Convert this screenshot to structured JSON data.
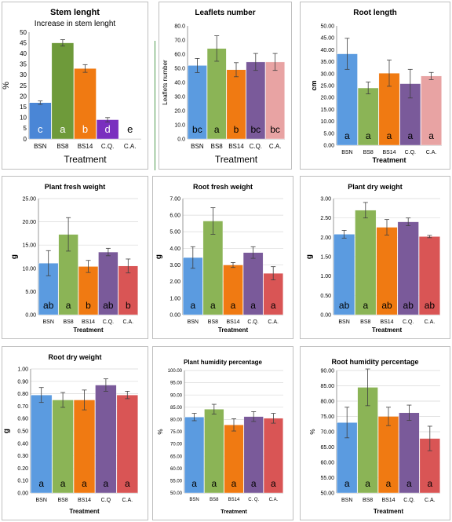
{
  "chart_data": [
    {
      "type": "bar",
      "title": "Stem lenght",
      "subtitle": "Increase in stem lenght",
      "xlabel": "Treatment",
      "ylabel": "%",
      "ylim": [
        0,
        50
      ],
      "yticks": [
        "0",
        "5",
        "10",
        "15",
        "20",
        "25",
        "30",
        "35",
        "40",
        "45",
        "50"
      ],
      "categories": [
        "BSN",
        "BS8",
        "BS14",
        "C.Q.",
        "C.A."
      ],
      "values": [
        17,
        45,
        33,
        9,
        0.3
      ],
      "errors": [
        0.8,
        1.5,
        1.8,
        1.0,
        0
      ],
      "letters": [
        "c",
        "a",
        "b",
        "d",
        "e"
      ],
      "colors": [
        "#4a86d6",
        "#6e9a3a",
        "#f07a12",
        "#7a2fbf",
        "#d9d9d9"
      ],
      "letter_colors": [
        "#ffffff",
        "#ffffff",
        "#ffffff",
        "#ffffff",
        "#000000"
      ],
      "grid": false
    },
    {
      "type": "bar",
      "title": "Leaflets number",
      "xlabel": "Treatment",
      "ylabel": "Leaflets number",
      "ylim": [
        0,
        80
      ],
      "yticks": [
        "0.0",
        "10.0",
        "20.0",
        "30.0",
        "40.0",
        "50.0",
        "60.0",
        "70.0",
        "80.0"
      ],
      "categories": [
        "BSN",
        "BS8",
        "BS14",
        "C.Q.",
        "C.A."
      ],
      "values": [
        52,
        64,
        49,
        54.5,
        54.5
      ],
      "errors": [
        5,
        9,
        5,
        6,
        6
      ],
      "letters": [
        "bc",
        "a",
        "b",
        "bc",
        "bc"
      ],
      "colors": [
        "#5b9be0",
        "#8bb456",
        "#f07a12",
        "#7a5a9a",
        "#e8a3a3"
      ],
      "letter_colors": [
        "#000000",
        "#000000",
        "#000000",
        "#000000",
        "#000000"
      ],
      "grid": false
    },
    {
      "type": "bar",
      "title": "Root length",
      "xlabel": "Treatment",
      "ylabel": "cm",
      "ylim": [
        0,
        50
      ],
      "yticks": [
        "0.00",
        "5.00",
        "10.00",
        "15.00",
        "20.00",
        "25.00",
        "30.00",
        "35.00",
        "40.00",
        "45.00",
        "50.00"
      ],
      "categories": [
        "BSN",
        "BS8",
        "BS14",
        "C.Q.",
        "C.A."
      ],
      "values": [
        38.3,
        24,
        30.2,
        25.8,
        29
      ],
      "errors": [
        6.5,
        2.5,
        5.5,
        6,
        1.5
      ],
      "letters": [
        "a",
        "a",
        "a",
        "a",
        "a"
      ],
      "colors": [
        "#5b9be0",
        "#8bb456",
        "#f07a12",
        "#7a5a9a",
        "#e8a3a3"
      ],
      "letter_colors": [
        "#000000",
        "#000000",
        "#000000",
        "#000000",
        "#000000"
      ],
      "grid": false
    },
    {
      "type": "bar",
      "title": "Plant fresh weight",
      "xlabel": "Treatment",
      "ylabel": "g",
      "ylim": [
        0,
        25
      ],
      "yticks": [
        "0.00",
        "5.00",
        "10.00",
        "15.00",
        "20.00",
        "25.00"
      ],
      "categories": [
        "BSN",
        "BS8",
        "BS14",
        "C.Q.",
        "C.A."
      ],
      "values": [
        11.1,
        17.3,
        10.4,
        13.5,
        10.5
      ],
      "errors": [
        2.7,
        3.6,
        1.3,
        0.8,
        1.5
      ],
      "letters": [
        "ab",
        "a",
        "b",
        "ab",
        "b"
      ],
      "colors": [
        "#5b9be0",
        "#8bb456",
        "#f07a12",
        "#7a5a9a",
        "#d95555"
      ],
      "letter_colors": [
        "#000000",
        "#000000",
        "#000000",
        "#000000",
        "#000000"
      ],
      "grid": true
    },
    {
      "type": "bar",
      "title": "Root fresh weight",
      "xlabel": "Treatment",
      "ylabel": "g",
      "ylim": [
        0,
        7
      ],
      "yticks": [
        "0.00",
        "1.00",
        "2.00",
        "3.00",
        "4.00",
        "5.00",
        "6.00",
        "7.00"
      ],
      "categories": [
        "BSN",
        "BS8",
        "BS14",
        "C.Q.",
        "C.A."
      ],
      "values": [
        3.45,
        5.65,
        3.0,
        3.75,
        2.5
      ],
      "errors": [
        0.65,
        0.8,
        0.15,
        0.35,
        0.4
      ],
      "letters": [
        "a",
        "a",
        "a",
        "a",
        "a"
      ],
      "colors": [
        "#5b9be0",
        "#8bb456",
        "#f07a12",
        "#7a5a9a",
        "#d95555"
      ],
      "letter_colors": [
        "#000000",
        "#000000",
        "#000000",
        "#000000",
        "#000000"
      ],
      "grid": true
    },
    {
      "type": "bar",
      "title": "Plant dry weight",
      "xlabel": "Treatment",
      "ylabel": "g",
      "ylim": [
        0,
        3
      ],
      "yticks": [
        "0.00",
        "0.50",
        "1.00",
        "1.50",
        "2.00",
        "2.50",
        "3.00"
      ],
      "categories": [
        "BSN",
        "BS8",
        "BS14",
        "C.Q.",
        "C.A."
      ],
      "values": [
        2.08,
        2.7,
        2.26,
        2.4,
        2.02
      ],
      "errors": [
        0.1,
        0.2,
        0.2,
        0.1,
        0.03
      ],
      "letters": [
        "ab",
        "a",
        "ab",
        "ab",
        "ab"
      ],
      "colors": [
        "#5b9be0",
        "#8bb456",
        "#f07a12",
        "#7a5a9a",
        "#d95555"
      ],
      "letter_colors": [
        "#000000",
        "#000000",
        "#000000",
        "#000000",
        "#000000"
      ],
      "grid": true
    },
    {
      "type": "bar",
      "title": "Root dry weight",
      "xlabel": "Treatment",
      "ylabel": "g",
      "ylim": [
        0,
        1
      ],
      "yticks": [
        "0.00",
        "0.10",
        "0.20",
        "0.30",
        "0.40",
        "0.50",
        "0.60",
        "0.70",
        "0.80",
        "0.90",
        "1.00"
      ],
      "categories": [
        "BSN",
        "BS8",
        "BS14",
        "C.Q",
        "C.A."
      ],
      "values": [
        0.79,
        0.75,
        0.75,
        0.87,
        0.79
      ],
      "errors": [
        0.06,
        0.06,
        0.08,
        0.05,
        0.03
      ],
      "letters": [
        "a",
        "a",
        "a",
        "a",
        "a"
      ],
      "colors": [
        "#5b9be0",
        "#8bb456",
        "#f07a12",
        "#7a5a9a",
        "#d95555"
      ],
      "letter_colors": [
        "#000000",
        "#000000",
        "#000000",
        "#000000",
        "#000000"
      ],
      "grid": true
    },
    {
      "type": "bar",
      "title": "Plant humidity percentage",
      "xlabel": "Treatment",
      "ylabel": "%",
      "ylim": [
        50,
        100
      ],
      "yticks": [
        "50.00",
        "55.00",
        "60.00",
        "65.00",
        "70.00",
        "75.00",
        "80.00",
        "85.00",
        "90.00",
        "95.00",
        "100.00"
      ],
      "categories": [
        "BSN",
        "BS8",
        "BS14",
        "C. Q.",
        "C.A."
      ],
      "values": [
        81,
        84.2,
        77.8,
        81.2,
        80.5
      ],
      "errors": [
        1.5,
        2,
        2.5,
        2,
        2
      ],
      "letters": [
        "a",
        "a",
        "a",
        "a",
        "a"
      ],
      "colors": [
        "#5b9be0",
        "#8bb456",
        "#f07a12",
        "#7a5a9a",
        "#d95555"
      ],
      "letter_colors": [
        "#000000",
        "#000000",
        "#000000",
        "#000000",
        "#000000"
      ],
      "grid": true
    },
    {
      "type": "bar",
      "title": "Root humidity percentage",
      "xlabel": "Treatment",
      "ylabel": "%",
      "ylim": [
        50,
        90
      ],
      "yticks": [
        "50.00",
        "55.00",
        "60.00",
        "65.00",
        "70.00",
        "75.00",
        "80.00",
        "85.00",
        "90.00"
      ],
      "categories": [
        "BSN",
        "BS8",
        "BS14",
        "C.Q.",
        "C.A."
      ],
      "values": [
        73,
        84.5,
        75,
        76.2,
        67.8
      ],
      "errors": [
        5,
        6,
        3,
        2.5,
        4
      ],
      "letters": [
        "a",
        "a",
        "a",
        "a",
        "a"
      ],
      "colors": [
        "#5b9be0",
        "#8bb456",
        "#f07a12",
        "#7a5a9a",
        "#d95555"
      ],
      "letter_colors": [
        "#000000",
        "#000000",
        "#000000",
        "#000000",
        "#000000"
      ],
      "grid": true
    }
  ]
}
